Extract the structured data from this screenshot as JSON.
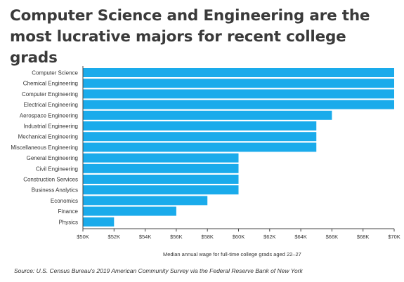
{
  "title_line1": "Computer Science and Engineering are the",
  "title_line2": "most lucrative majors for recent college grads",
  "source": "Source:  U.S. Census Bureau's 2019 American Community Survey via the Federal Reserve Bank of New York",
  "colors": {
    "bar": "#1aabeb",
    "axis": "#444444",
    "text": "#333333"
  },
  "chart_data": {
    "type": "bar",
    "orientation": "horizontal",
    "categories": [
      "Computer Science",
      "Chemical Engineering",
      "Computer Engineering",
      "Electrical Engineering",
      "Aerospace Engineering",
      "Industrial Engineering",
      "Mechanical Engineering",
      "Miscellaneous Engineering",
      "General Engineering",
      "Civil Engineering",
      "Construction Services",
      "Business Analytics",
      "Economics",
      "Finance",
      "Physics"
    ],
    "values": [
      70000,
      70000,
      70000,
      70000,
      66000,
      65000,
      65000,
      65000,
      60000,
      60000,
      60000,
      60000,
      58000,
      56000,
      52000
    ],
    "xlabel": "Median annual wage for full-time college grads aged 22–27",
    "ylabel": "",
    "xlim": [
      50000,
      70000
    ],
    "ticks": [
      50000,
      52000,
      54000,
      56000,
      58000,
      60000,
      62000,
      64000,
      66000,
      68000,
      70000
    ],
    "tick_labels": [
      "$50K",
      "$52K",
      "$54K",
      "$56K",
      "$58K",
      "$60K",
      "$62K",
      "$64K",
      "$66K",
      "$68K",
      "$70K"
    ],
    "grid": false,
    "legend": "none"
  }
}
